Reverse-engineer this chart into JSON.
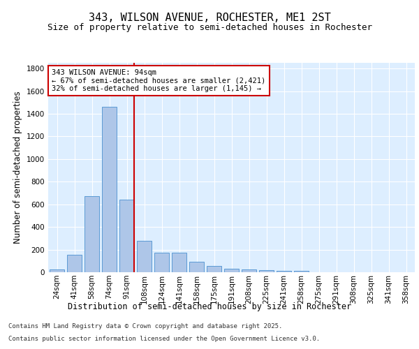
{
  "title1": "343, WILSON AVENUE, ROCHESTER, ME1 2ST",
  "title2": "Size of property relative to semi-detached houses in Rochester",
  "xlabel": "Distribution of semi-detached houses by size in Rochester",
  "ylabel": "Number of semi-detached properties",
  "categories": [
    "24sqm",
    "41sqm",
    "58sqm",
    "74sqm",
    "91sqm",
    "108sqm",
    "124sqm",
    "141sqm",
    "158sqm",
    "175sqm",
    "191sqm",
    "208sqm",
    "225sqm",
    "241sqm",
    "258sqm",
    "275sqm",
    "291sqm",
    "308sqm",
    "325sqm",
    "341sqm",
    "358sqm"
  ],
  "values": [
    22,
    155,
    675,
    1460,
    640,
    280,
    170,
    170,
    95,
    58,
    30,
    22,
    18,
    15,
    12,
    3,
    3,
    3,
    3,
    3,
    3
  ],
  "bar_color": "#aec6e8",
  "bar_edgecolor": "#5b9bd5",
  "redline_index": 4,
  "annotation_text": "343 WILSON AVENUE: 94sqm\n← 67% of semi-detached houses are smaller (2,421)\n32% of semi-detached houses are larger (1,145) →",
  "annotation_box_color": "#ffffff",
  "annotation_box_edgecolor": "#cc0000",
  "redline_color": "#cc0000",
  "ylim": [
    0,
    1850
  ],
  "yticks": [
    0,
    200,
    400,
    600,
    800,
    1000,
    1200,
    1400,
    1600,
    1800
  ],
  "footnote1": "Contains HM Land Registry data © Crown copyright and database right 2025.",
  "footnote2": "Contains public sector information licensed under the Open Government Licence v3.0.",
  "bg_color": "#ddeeff",
  "grid_color": "#ffffff",
  "title_fontsize": 11,
  "subtitle_fontsize": 9,
  "axis_label_fontsize": 8.5,
  "tick_fontsize": 7.5,
  "annotation_fontsize": 7.5
}
